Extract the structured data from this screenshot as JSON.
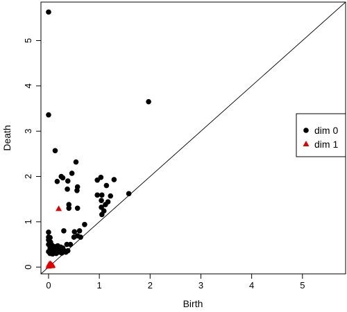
{
  "chart_data": {
    "type": "scatter",
    "title": "",
    "xlabel": "Birth",
    "ylabel": "Death",
    "xlim": [
      -0.15,
      5.85
    ],
    "ylim": [
      -0.15,
      5.85
    ],
    "xticks": [
      "0",
      "1",
      "2",
      "3",
      "4",
      "5"
    ],
    "yticks": [
      "0",
      "1",
      "2",
      "3",
      "4",
      "5"
    ],
    "diagonal": true,
    "grid": false,
    "legend_position": "right",
    "series": [
      {
        "name": "dim 0",
        "marker": "circle",
        "color": "#000000",
        "points": [
          [
            0.0,
            5.63
          ],
          [
            0.0,
            3.36
          ],
          [
            1.97,
            3.65
          ],
          [
            0.13,
            2.57
          ],
          [
            0.54,
            2.32
          ],
          [
            0.25,
            2.0
          ],
          [
            0.28,
            1.97
          ],
          [
            0.46,
            2.07
          ],
          [
            0.17,
            1.89
          ],
          [
            0.38,
            1.9
          ],
          [
            0.37,
            1.72
          ],
          [
            0.57,
            1.77
          ],
          [
            0.56,
            1.69
          ],
          [
            0.4,
            1.38
          ],
          [
            0.4,
            1.3
          ],
          [
            0.57,
            1.3
          ],
          [
            1.03,
            1.98
          ],
          [
            0.96,
            1.92
          ],
          [
            1.29,
            1.93
          ],
          [
            1.14,
            1.8
          ],
          [
            1.58,
            1.62
          ],
          [
            1.22,
            1.57
          ],
          [
            0.96,
            1.59
          ],
          [
            1.05,
            1.59
          ],
          [
            1.04,
            1.47
          ],
          [
            1.17,
            1.44
          ],
          [
            1.12,
            1.38
          ],
          [
            1.04,
            1.32
          ],
          [
            1.09,
            1.24
          ],
          [
            1.05,
            1.16
          ],
          [
            0.71,
            0.94
          ],
          [
            0.61,
            0.8
          ],
          [
            0.51,
            0.78
          ],
          [
            0.3,
            0.8
          ],
          [
            0.0,
            0.77
          ],
          [
            0.0,
            0.66
          ],
          [
            0.03,
            0.65
          ],
          [
            0.63,
            0.66
          ],
          [
            0.5,
            0.66
          ],
          [
            0.57,
            0.69
          ],
          [
            0.0,
            0.6
          ],
          [
            0.04,
            0.55
          ],
          [
            0.43,
            0.5
          ],
          [
            0.36,
            0.5
          ],
          [
            0.0,
            0.5
          ],
          [
            0.07,
            0.48
          ],
          [
            0.12,
            0.45
          ],
          [
            0.18,
            0.47
          ],
          [
            0.24,
            0.44
          ],
          [
            0.28,
            0.42
          ],
          [
            0.03,
            0.42
          ],
          [
            0.1,
            0.4
          ],
          [
            0.16,
            0.38
          ],
          [
            0.22,
            0.38
          ],
          [
            0.3,
            0.37
          ],
          [
            0.38,
            0.36
          ],
          [
            0.0,
            0.34
          ],
          [
            0.05,
            0.33
          ],
          [
            0.12,
            0.34
          ],
          [
            0.2,
            0.33
          ],
          [
            0.03,
            0.3
          ],
          [
            0.08,
            0.29
          ],
          [
            0.15,
            0.3
          ],
          [
            0.26,
            0.31
          ],
          [
            0.34,
            0.33
          ]
        ]
      },
      {
        "name": "dim 1",
        "marker": "triangle",
        "color": "#e00000",
        "points": [
          [
            0.2,
            1.29
          ],
          [
            0.0,
            0.02
          ],
          [
            0.02,
            0.04
          ],
          [
            0.05,
            0.07
          ],
          [
            0.08,
            0.04
          ],
          [
            0.03,
            0.08
          ],
          [
            0.06,
            0.03
          ],
          [
            0.01,
            0.06
          ]
        ]
      }
    ]
  }
}
